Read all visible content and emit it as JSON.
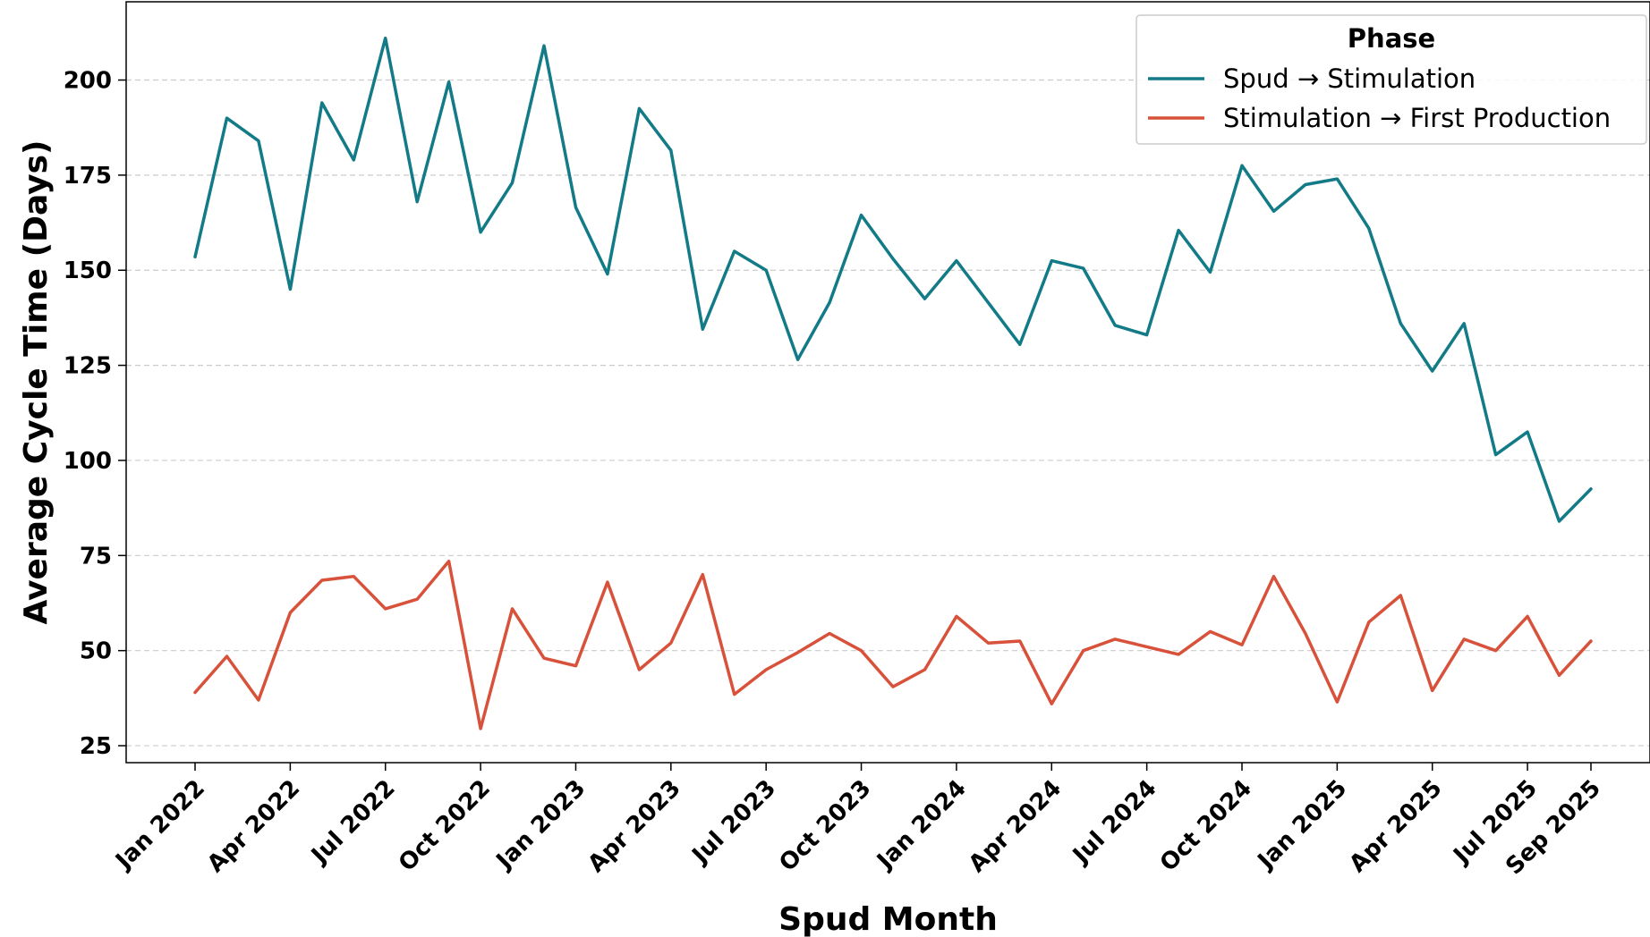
{
  "chart_data": {
    "type": "line",
    "title": "",
    "xlabel": "Spud Month",
    "ylabel": "Average Cycle Time (Days)",
    "ylim": [
      20,
      215
    ],
    "yticks": [
      25,
      50,
      75,
      100,
      125,
      150,
      175,
      200
    ],
    "grid": "horizontal dashed",
    "legend": {
      "title": "Phase",
      "placement": "top-right"
    },
    "x": [
      "2022-01",
      "2022-02",
      "2022-03",
      "2022-04",
      "2022-05",
      "2022-06",
      "2022-07",
      "2022-08",
      "2022-09",
      "2022-10",
      "2022-11",
      "2022-12",
      "2023-01",
      "2023-02",
      "2023-03",
      "2023-04",
      "2023-05",
      "2023-06",
      "2023-07",
      "2023-08",
      "2023-09",
      "2023-10",
      "2023-11",
      "2023-12",
      "2024-01",
      "2024-02",
      "2024-03",
      "2024-04",
      "2024-05",
      "2024-06",
      "2024-07",
      "2024-08",
      "2024-09",
      "2024-10",
      "2024-11",
      "2024-12",
      "2025-01",
      "2025-02",
      "2025-03",
      "2025-04",
      "2025-05",
      "2025-06",
      "2025-07",
      "2025-08",
      "2025-09"
    ],
    "xtick_labels": [
      {
        "x": "2022-01",
        "label": "Jan 2022"
      },
      {
        "x": "2022-04",
        "label": "Apr 2022"
      },
      {
        "x": "2022-07",
        "label": "Jul 2022"
      },
      {
        "x": "2022-10",
        "label": "Oct 2022"
      },
      {
        "x": "2023-01",
        "label": "Jan 2023"
      },
      {
        "x": "2023-04",
        "label": "Apr 2023"
      },
      {
        "x": "2023-07",
        "label": "Jul 2023"
      },
      {
        "x": "2023-10",
        "label": "Oct 2023"
      },
      {
        "x": "2024-01",
        "label": "Jan 2024"
      },
      {
        "x": "2024-04",
        "label": "Apr 2024"
      },
      {
        "x": "2024-07",
        "label": "Jul 2024"
      },
      {
        "x": "2024-10",
        "label": "Oct 2024"
      },
      {
        "x": "2025-01",
        "label": "Jan 2025"
      },
      {
        "x": "2025-04",
        "label": "Apr 2025"
      },
      {
        "x": "2025-07",
        "label": "Jul 2025"
      },
      {
        "x": "2025-09",
        "label": "Sep 2025"
      }
    ],
    "series": [
      {
        "name": "Spud → Stimulation",
        "color": "#137a87",
        "values": [
          153.5,
          190,
          184,
          145,
          194,
          179,
          211,
          168,
          199.5,
          160,
          173,
          209,
          166.5,
          149,
          192.5,
          181.5,
          134.5,
          155,
          150,
          126.5,
          141.5,
          164.5,
          153,
          142.5,
          152.5,
          141.5,
          130.5,
          152.5,
          150.5,
          135.5,
          133,
          160.5,
          149.5,
          177.5,
          165.5,
          172.5,
          174,
          161,
          136,
          123.5,
          136,
          101.5,
          107.5,
          84,
          92.5
        ]
      },
      {
        "name": "Stimulation → First Production",
        "color": "#d8513a",
        "values": [
          39,
          48.5,
          37,
          60,
          68.5,
          69.5,
          61,
          63.5,
          73.5,
          29.5,
          61,
          48,
          46,
          68,
          45,
          52,
          70,
          38.5,
          45,
          49.5,
          54.5,
          50,
          40.5,
          45,
          59,
          52,
          52.5,
          36,
          50,
          53,
          51,
          49,
          55,
          51.5,
          69.5,
          54.5,
          36.5,
          57.5,
          64.5,
          39.5,
          53,
          50,
          59,
          43.5,
          52.5
        ]
      }
    ]
  }
}
